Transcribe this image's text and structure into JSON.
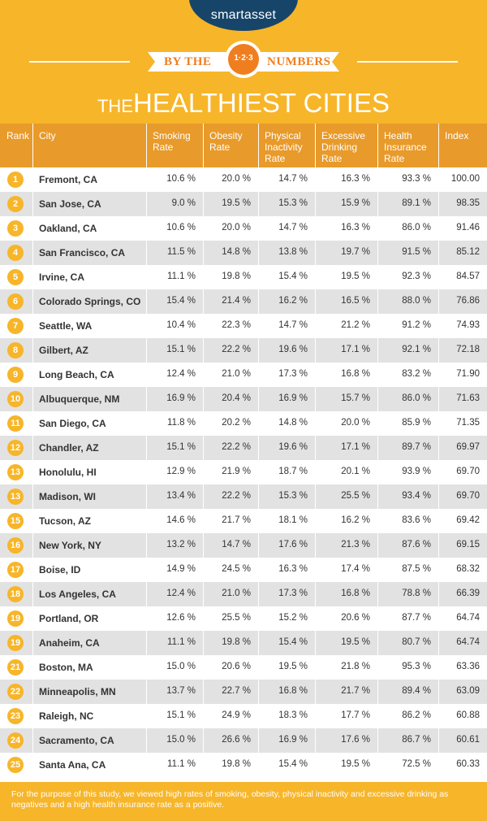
{
  "header": {
    "logo": "smartasset",
    "banner_left": "BY THE",
    "banner_badge": "1·2·3",
    "banner_right": "NUMBERS",
    "title_prefix": "THE",
    "title_main": "HEALTHIEST CITIES"
  },
  "colors": {
    "header_yellow": "#f7b529",
    "table_header": "#e89a2a",
    "navy": "#17456a",
    "orange": "#f07e1f",
    "row_alt": "#e2e2e2"
  },
  "chart_data": {
    "type": "table",
    "columns": [
      {
        "line1": "Rank",
        "line2": "",
        "line3": ""
      },
      {
        "line1": "City",
        "line2": "",
        "line3": ""
      },
      {
        "line1": "Smoking",
        "line2": "Rate",
        "line3": ""
      },
      {
        "line1": "Obesity",
        "line2": "Rate",
        "line3": ""
      },
      {
        "line1": "Physical",
        "line2": "Inactivity",
        "line3": "Rate"
      },
      {
        "line1": "Excessive",
        "line2": "Drinking",
        "line3": "Rate"
      },
      {
        "line1": "Health",
        "line2": "Insurance",
        "line3": "Rate"
      },
      {
        "line1": "Index",
        "line2": "",
        "line3": ""
      }
    ],
    "rows": [
      {
        "rank": "1",
        "city": "Fremont, CA",
        "smoking": "10.6 %",
        "obesity": "20.0 %",
        "inactivity": "14.7 %",
        "drinking": "16.3 %",
        "insurance": "93.3 %",
        "index": "100.00"
      },
      {
        "rank": "2",
        "city": "San Jose, CA",
        "smoking": "9.0 %",
        "obesity": "19.5 %",
        "inactivity": "15.3 %",
        "drinking": "15.9 %",
        "insurance": "89.1 %",
        "index": "98.35"
      },
      {
        "rank": "3",
        "city": "Oakland, CA",
        "smoking": "10.6 %",
        "obesity": "20.0 %",
        "inactivity": "14.7 %",
        "drinking": "16.3 %",
        "insurance": "86.0 %",
        "index": "91.46"
      },
      {
        "rank": "4",
        "city": "San Francisco, CA",
        "smoking": "11.5 %",
        "obesity": "14.8 %",
        "inactivity": "13.8 %",
        "drinking": "19.7 %",
        "insurance": "91.5 %",
        "index": "85.12"
      },
      {
        "rank": "5",
        "city": "Irvine, CA",
        "smoking": "11.1 %",
        "obesity": "19.8 %",
        "inactivity": "15.4 %",
        "drinking": "19.5 %",
        "insurance": "92.3 %",
        "index": "84.57"
      },
      {
        "rank": "6",
        "city": "Colorado Springs, CO",
        "smoking": "15.4 %",
        "obesity": "21.4 %",
        "inactivity": "16.2 %",
        "drinking": "16.5 %",
        "insurance": "88.0 %",
        "index": "76.86"
      },
      {
        "rank": "7",
        "city": "Seattle, WA",
        "smoking": "10.4 %",
        "obesity": "22.3 %",
        "inactivity": "14.7 %",
        "drinking": "21.2 %",
        "insurance": "91.2 %",
        "index": "74.93"
      },
      {
        "rank": "8",
        "city": "Gilbert, AZ",
        "smoking": "15.1 %",
        "obesity": "22.2 %",
        "inactivity": "19.6 %",
        "drinking": "17.1 %",
        "insurance": "92.1 %",
        "index": "72.18"
      },
      {
        "rank": "9",
        "city": "Long Beach, CA",
        "smoking": "12.4 %",
        "obesity": "21.0 %",
        "inactivity": "17.3 %",
        "drinking": "16.8 %",
        "insurance": "83.2 %",
        "index": "71.90"
      },
      {
        "rank": "10",
        "city": "Albuquerque, NM",
        "smoking": "16.9 %",
        "obesity": "20.4 %",
        "inactivity": "16.9 %",
        "drinking": "15.7 %",
        "insurance": "86.0 %",
        "index": "71.63"
      },
      {
        "rank": "11",
        "city": "San Diego, CA",
        "smoking": "11.8 %",
        "obesity": "20.2 %",
        "inactivity": "14.8 %",
        "drinking": "20.0 %",
        "insurance": "85.9 %",
        "index": "71.35"
      },
      {
        "rank": "12",
        "city": "Chandler, AZ",
        "smoking": "15.1 %",
        "obesity": "22.2 %",
        "inactivity": "19.6 %",
        "drinking": "17.1 %",
        "insurance": "89.7 %",
        "index": "69.97"
      },
      {
        "rank": "13",
        "city": "Honolulu, HI",
        "smoking": "12.9 %",
        "obesity": "21.9 %",
        "inactivity": "18.7 %",
        "drinking": "20.1 %",
        "insurance": "93.9 %",
        "index": "69.70"
      },
      {
        "rank": "13",
        "city": "Madison, WI",
        "smoking": "13.4 %",
        "obesity": "22.2 %",
        "inactivity": "15.3 %",
        "drinking": "25.5 %",
        "insurance": "93.4 %",
        "index": "69.70"
      },
      {
        "rank": "15",
        "city": "Tucson, AZ",
        "smoking": "14.6 %",
        "obesity": "21.7 %",
        "inactivity": "18.1 %",
        "drinking": "16.2 %",
        "insurance": "83.6 %",
        "index": "69.42"
      },
      {
        "rank": "16",
        "city": "New York, NY",
        "smoking": "13.2 %",
        "obesity": "14.7 %",
        "inactivity": "17.6 %",
        "drinking": "21.3 %",
        "insurance": "87.6 %",
        "index": "69.15"
      },
      {
        "rank": "17",
        "city": "Boise, ID",
        "smoking": "14.9 %",
        "obesity": "24.5 %",
        "inactivity": "16.3 %",
        "drinking": "17.4 %",
        "insurance": "87.5 %",
        "index": "68.32"
      },
      {
        "rank": "18",
        "city": "Los Angeles, CA",
        "smoking": "12.4 %",
        "obesity": "21.0 %",
        "inactivity": "17.3 %",
        "drinking": "16.8 %",
        "insurance": "78.8 %",
        "index": "66.39"
      },
      {
        "rank": "19",
        "city": "Portland, OR",
        "smoking": "12.6 %",
        "obesity": "25.5 %",
        "inactivity": "15.2 %",
        "drinking": "20.6 %",
        "insurance": "87.7 %",
        "index": "64.74"
      },
      {
        "rank": "19",
        "city": "Anaheim, CA",
        "smoking": "11.1 %",
        "obesity": "19.8 %",
        "inactivity": "15.4 %",
        "drinking": "19.5 %",
        "insurance": "80.7 %",
        "index": "64.74"
      },
      {
        "rank": "21",
        "city": "Boston, MA",
        "smoking": "15.0 %",
        "obesity": "20.6 %",
        "inactivity": "19.5 %",
        "drinking": "21.8 %",
        "insurance": "95.3 %",
        "index": "63.36"
      },
      {
        "rank": "22",
        "city": "Minneapolis, MN",
        "smoking": "13.7 %",
        "obesity": "22.7 %",
        "inactivity": "16.8 %",
        "drinking": "21.7 %",
        "insurance": "89.4 %",
        "index": "63.09"
      },
      {
        "rank": "23",
        "city": "Raleigh, NC",
        "smoking": "15.1 %",
        "obesity": "24.9 %",
        "inactivity": "18.3 %",
        "drinking": "17.7 %",
        "insurance": "86.2 %",
        "index": "60.88"
      },
      {
        "rank": "24",
        "city": "Sacramento, CA",
        "smoking": "15.0 %",
        "obesity": "26.6 %",
        "inactivity": "16.9 %",
        "drinking": "17.6 %",
        "insurance": "86.7 %",
        "index": "60.61"
      },
      {
        "rank": "25",
        "city": "Santa Ana, CA",
        "smoking": "11.1 %",
        "obesity": "19.8 %",
        "inactivity": "15.4 %",
        "drinking": "19.5 %",
        "insurance": "72.5 %",
        "index": "60.33"
      }
    ]
  },
  "footer": {
    "note": "For the purpose of this study, we viewed high rates of smoking, obesity, physical inactivity and excessive drinking as negatives and a high health insurance rate as a positive."
  }
}
